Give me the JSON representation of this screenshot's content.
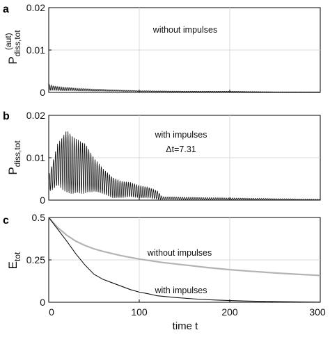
{
  "chart_data": [
    {
      "type": "line",
      "panel_label": "a",
      "ylabel_main": "P",
      "ylabel_sub": "diss,tot",
      "ylabel_sup": "(aut)",
      "annotation": "without impulses",
      "annotation_line2": "",
      "xlim": [
        0,
        300
      ],
      "ylim": [
        0,
        0.02
      ],
      "y_ticks": [
        {
          "value": 0,
          "label": "0"
        },
        {
          "value": 0.01,
          "label": "0.01"
        },
        {
          "value": 0.02,
          "label": "0.02"
        }
      ],
      "x_ticks": [],
      "grid": true,
      "series": [
        {
          "color": "#111111",
          "points": [
            [
              0,
              0.0012
            ],
            [
              5,
              0.001
            ],
            [
              10,
              0.0009
            ],
            [
              20,
              0.0008
            ],
            [
              30,
              0.0007
            ],
            [
              40,
              0.0006
            ],
            [
              60,
              0.0005
            ],
            [
              80,
              0.0004
            ],
            [
              100,
              0.0003
            ],
            [
              150,
              0.0002
            ],
            [
              200,
              0.0002
            ],
            [
              250,
              0.0001
            ],
            [
              300,
              0.0001
            ]
          ],
          "oscillation": {
            "amp": [
              [
                0,
                0.0007
              ],
              [
                5,
                0.0005
              ],
              [
                30,
                0.0003
              ],
              [
                60,
                0.0002
              ],
              [
                100,
                0.0001
              ],
              [
                300,
                0.0
              ]
            ],
            "period": 2.2
          }
        }
      ]
    },
    {
      "type": "line",
      "panel_label": "b",
      "ylabel_main": "P",
      "ylabel_sub": "diss,tot",
      "ylabel_sup": "",
      "annotation": "with impulses",
      "annotation_line2": "Δt=7.31",
      "xlim": [
        0,
        300
      ],
      "ylim": [
        0,
        0.02
      ],
      "y_ticks": [
        {
          "value": 0,
          "label": "0"
        },
        {
          "value": 0.01,
          "label": "0.01"
        },
        {
          "value": 0.02,
          "label": "0.02"
        }
      ],
      "x_ticks": [],
      "grid": true,
      "series": [
        {
          "color": "#111111",
          "points": [
            [
              0,
              0.004
            ],
            [
              5,
              0.006
            ],
            [
              10,
              0.0085
            ],
            [
              20,
              0.009
            ],
            [
              30,
              0.008
            ],
            [
              40,
              0.0075
            ],
            [
              50,
              0.006
            ],
            [
              60,
              0.0045
            ],
            [
              70,
              0.003
            ],
            [
              80,
              0.0025
            ],
            [
              90,
              0.0025
            ],
            [
              100,
              0.002
            ],
            [
              110,
              0.0018
            ],
            [
              120,
              0.0012
            ],
            [
              125,
              0.0005
            ],
            [
              150,
              0.0004
            ],
            [
              200,
              0.0003
            ],
            [
              250,
              0.0002
            ],
            [
              300,
              0.0001
            ]
          ],
          "oscillation": {
            "amp": [
              [
                0,
                0.002
              ],
              [
                10,
                0.005
              ],
              [
                20,
                0.0075
              ],
              [
                30,
                0.0065
              ],
              [
                40,
                0.006
              ],
              [
                50,
                0.004
              ],
              [
                60,
                0.003
              ],
              [
                80,
                0.002
              ],
              [
                100,
                0.0015
              ],
              [
                120,
                0.001
              ],
              [
                126,
                0.0003
              ],
              [
                300,
                0.0001
              ]
            ],
            "period": 2.3
          }
        }
      ]
    },
    {
      "type": "line",
      "panel_label": "c",
      "ylabel_main": "E",
      "ylabel_sub": "tot",
      "ylabel_sup": "",
      "annotation": "without impulses",
      "annotation2": "with impulses",
      "xlabel": "time t",
      "xlim": [
        0,
        300
      ],
      "ylim": [
        0,
        0.5
      ],
      "y_ticks": [
        {
          "value": 0,
          "label": "0"
        },
        {
          "value": 0.25,
          "label": "0.25"
        },
        {
          "value": 0.5,
          "label": "0.5"
        }
      ],
      "x_ticks": [
        {
          "value": 0,
          "label": "0"
        },
        {
          "value": 100,
          "label": "100"
        },
        {
          "value": 200,
          "label": "200"
        },
        {
          "value": 300,
          "label": "300"
        }
      ],
      "grid": true,
      "series": [
        {
          "color": "#b3b3b3",
          "points": [
            [
              0,
              0.5
            ],
            [
              5,
              0.47
            ],
            [
              10,
              0.44
            ],
            [
              20,
              0.395
            ],
            [
              30,
              0.36
            ],
            [
              40,
              0.335
            ],
            [
              50,
              0.315
            ],
            [
              60,
              0.3
            ],
            [
              80,
              0.275
            ],
            [
              100,
              0.255
            ],
            [
              125,
              0.235
            ],
            [
              150,
              0.22
            ],
            [
              175,
              0.205
            ],
            [
              200,
              0.192
            ],
            [
              225,
              0.182
            ],
            [
              250,
              0.173
            ],
            [
              275,
              0.165
            ],
            [
              300,
              0.158
            ]
          ]
        },
        {
          "color": "#111111",
          "points": [
            [
              0,
              0.5
            ],
            [
              5,
              0.465
            ],
            [
              10,
              0.43
            ],
            [
              20,
              0.36
            ],
            [
              30,
              0.285
            ],
            [
              40,
              0.22
            ],
            [
              50,
              0.165
            ],
            [
              60,
              0.135
            ],
            [
              70,
              0.115
            ],
            [
              80,
              0.095
            ],
            [
              90,
              0.075
            ],
            [
              100,
              0.06
            ],
            [
              110,
              0.05
            ],
            [
              120,
              0.038
            ],
            [
              140,
              0.028
            ],
            [
              160,
              0.02
            ],
            [
              180,
              0.014
            ],
            [
              200,
              0.01
            ],
            [
              220,
              0.007
            ],
            [
              250,
              0.004
            ],
            [
              280,
              0.002
            ],
            [
              300,
              0.001
            ]
          ]
        }
      ]
    }
  ]
}
